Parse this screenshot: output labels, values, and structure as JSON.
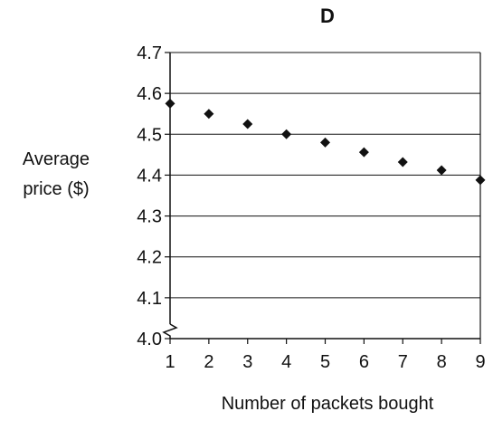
{
  "chart_data": {
    "type": "scatter",
    "title": "D",
    "xlabel": "Number of packets bought",
    "ylabel_lines": [
      "Average",
      "price ($)"
    ],
    "x_ticks": [
      "1",
      "2",
      "3",
      "4",
      "5",
      "6",
      "7",
      "8",
      "9"
    ],
    "y_ticks": [
      "4.0",
      "4.1",
      "4.2",
      "4.3",
      "4.4",
      "4.5",
      "4.6",
      "4.7"
    ],
    "xlim": [
      1,
      9
    ],
    "ylim": [
      4.0,
      4.7
    ],
    "y_axis_break": true,
    "grid": "horizontal",
    "marker": "diamond",
    "points": [
      {
        "x": 1,
        "y": 4.575
      },
      {
        "x": 2,
        "y": 4.55
      },
      {
        "x": 3,
        "y": 4.525
      },
      {
        "x": 4,
        "y": 4.5
      },
      {
        "x": 5,
        "y": 4.48
      },
      {
        "x": 6,
        "y": 4.456
      },
      {
        "x": 7,
        "y": 4.432
      },
      {
        "x": 8,
        "y": 4.412
      },
      {
        "x": 9,
        "y": 4.388
      }
    ],
    "colors": {
      "marker": "#111111",
      "axis": "#111111",
      "grid": "#111111"
    }
  }
}
